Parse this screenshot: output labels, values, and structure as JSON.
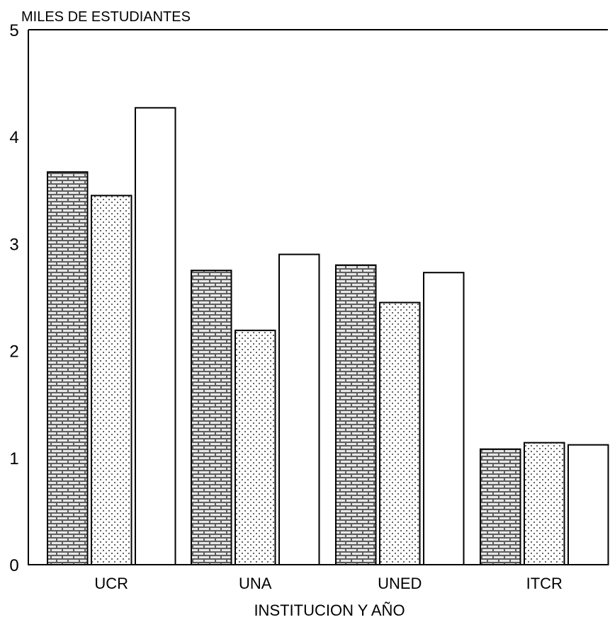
{
  "chart_data": {
    "type": "bar",
    "ylabel": "MILES DE ESTUDIANTES",
    "xlabel": "INSTITUCION Y AÑO",
    "categories": [
      "UCR",
      "UNA",
      "UNED",
      "ITCR"
    ],
    "yticks": [
      "0",
      "1",
      "2",
      "3",
      "4",
      "5"
    ],
    "ylim": [
      0,
      5
    ],
    "grid": false,
    "series": [
      {
        "values": [
          3.67,
          2.75,
          2.8,
          1.08
        ],
        "pattern": "brick",
        "color": "#555555"
      },
      {
        "values": [
          3.45,
          2.19,
          2.45,
          1.14
        ],
        "pattern": "dots",
        "color": "#f2f2f2"
      },
      {
        "values": [
          4.27,
          2.9,
          2.73,
          1.12
        ],
        "pattern": "none",
        "color": "#ffffff"
      }
    ]
  }
}
